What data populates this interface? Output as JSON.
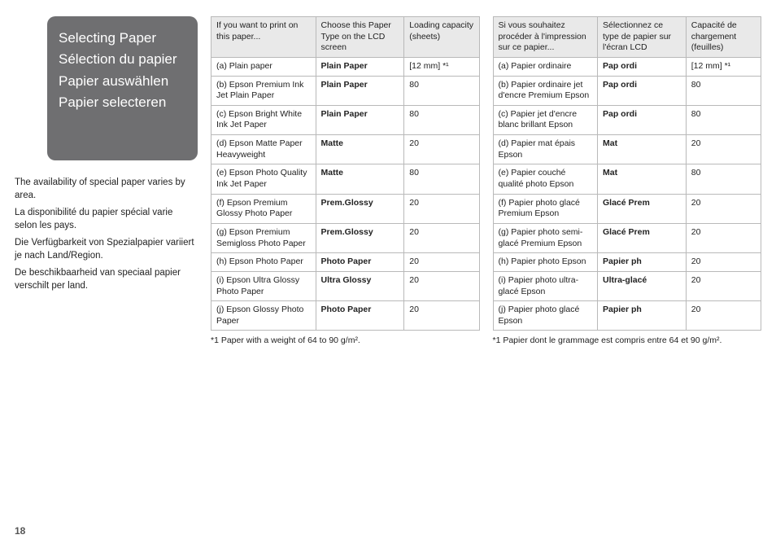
{
  "titles": {
    "en": "Selecting Paper",
    "fr": "Sélection du papier",
    "de": "Papier auswählen",
    "nl": "Papier selecteren"
  },
  "availability": {
    "en": "The availability of special paper varies by area.",
    "fr": "La disponibilité du papier spécial varie selon les pays.",
    "de": "Die Verfügbarkeit von Spezialpapier variiert je nach Land/Region.",
    "nl": "De beschikbaarheid van speciaal papier verschilt per land."
  },
  "pageNumber": "18",
  "tableEN": {
    "headers": {
      "c1": "If you want to print on this paper...",
      "c2": "Choose this Paper Type on the LCD screen",
      "c3": "Loading capacity (sheets)"
    },
    "rows": [
      {
        "c1": "(a) Plain paper",
        "c2": "Plain Paper",
        "c3": "[12 mm] *¹"
      },
      {
        "c1": "(b) Epson Premium Ink Jet Plain Paper",
        "c2": "Plain Paper",
        "c3": "80"
      },
      {
        "c1": "(c) Epson Bright White Ink Jet Paper",
        "c2": "Plain Paper",
        "c3": "80"
      },
      {
        "c1": "(d) Epson Matte Paper Heavyweight",
        "c2": "Matte",
        "c3": "20"
      },
      {
        "c1": "(e) Epson Photo Quality Ink Jet Paper",
        "c2": "Matte",
        "c3": "80"
      },
      {
        "c1": "(f) Epson Premium Glossy Photo Paper",
        "c2": "Prem.Glossy",
        "c3": "20"
      },
      {
        "c1": "(g) Epson Premium Semigloss Photo Paper",
        "c2": "Prem.Glossy",
        "c3": "20"
      },
      {
        "c1": "(h) Epson Photo Paper",
        "c2": "Photo Paper",
        "c3": "20"
      },
      {
        "c1": "(i) Epson Ultra Glossy Photo Paper",
        "c2": "Ultra Glossy",
        "c3": "20"
      },
      {
        "c1": "(j) Epson Glossy Photo Paper",
        "c2": "Photo Paper",
        "c3": "20"
      }
    ],
    "footnote": "*1   Paper with a weight of 64 to 90 g/m²."
  },
  "tableFR": {
    "headers": {
      "c1": "Si vous souhaitez procéder à l'impression sur ce papier...",
      "c2": "Sélectionnez ce type de papier sur l'écran LCD",
      "c3": "Capacité de chargement (feuilles)"
    },
    "rows": [
      {
        "c1": "(a) Papier ordinaire",
        "c2": "Pap ordi",
        "c3": "[12 mm] *¹"
      },
      {
        "c1": "(b) Papier ordinaire jet d'encre Premium Epson",
        "c2": "Pap ordi",
        "c3": "80"
      },
      {
        "c1": "(c) Papier jet d'encre blanc brillant Epson",
        "c2": "Pap ordi",
        "c3": "80"
      },
      {
        "c1": "(d) Papier mat épais Epson",
        "c2": "Mat",
        "c3": "20"
      },
      {
        "c1": "(e) Papier couché qualité photo Epson",
        "c2": "Mat",
        "c3": "80"
      },
      {
        "c1": "(f) Papier photo glacé Premium Epson",
        "c2": "Glacé Prem",
        "c3": "20"
      },
      {
        "c1": "(g) Papier photo semi-glacé Premium Epson",
        "c2": "Glacé Prem",
        "c3": "20"
      },
      {
        "c1": "(h) Papier photo Epson",
        "c2": "Papier ph",
        "c3": "20"
      },
      {
        "c1": "(i) Papier photo ultra-glacé Epson",
        "c2": "Ultra-glacé",
        "c3": "20"
      },
      {
        "c1": "(j) Papier photo glacé Epson",
        "c2": "Papier ph",
        "c3": "20"
      }
    ],
    "footnote": "*1   Papier dont le grammage est compris entre 64 et 90 g/m²."
  }
}
